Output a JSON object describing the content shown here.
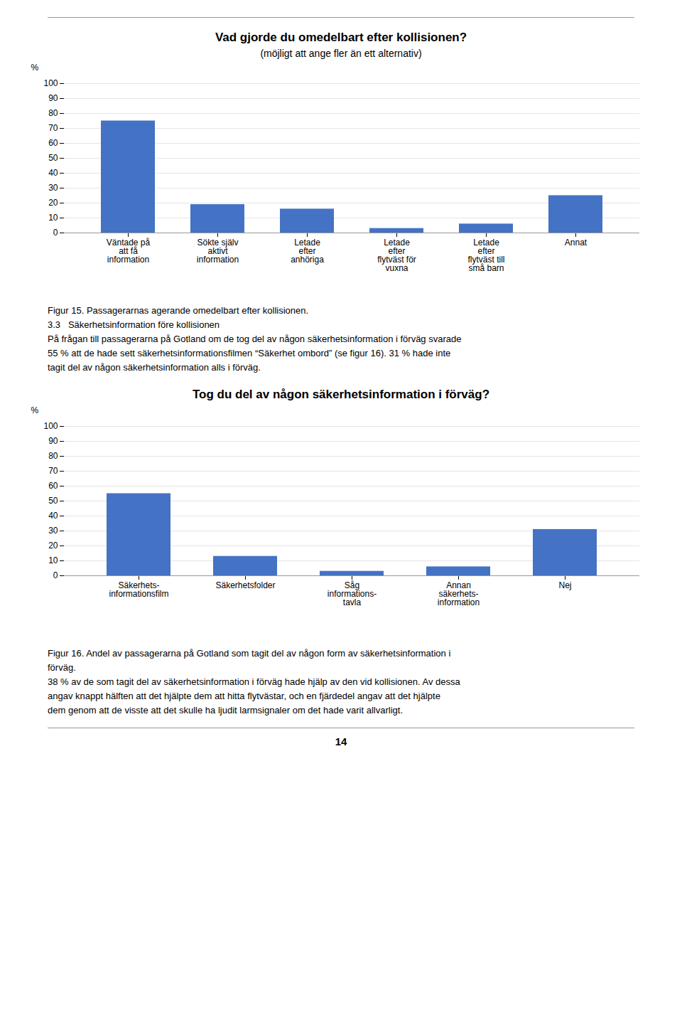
{
  "chart_data": [
    {
      "type": "bar",
      "title": "Vad gjorde du omedelbart efter kollisionen?",
      "subtitle": "(möjligt att ange fler än ett alternativ)",
      "ylabel": "%",
      "categories": [
        "Väntade på\natt få\ninformation",
        "Sökte själv\naktivt\ninformation",
        "Letade\nefter\nanhöriga",
        "Letade\nefter\nflytväst för\nvuxna",
        "Letade\nefter\nflytväst till\nsmå barn",
        "Annat"
      ],
      "values": [
        75,
        19,
        16,
        3,
        6,
        25
      ],
      "color": "#4472C4",
      "ylim": [
        0,
        100
      ],
      "yticks": [
        0,
        10,
        20,
        30,
        40,
        50,
        60,
        70,
        80,
        90,
        100
      ],
      "grid": true,
      "annotations": [
        "Figur 15. Passagerarnas agerande omedelbart efter kollisionen.",
        "3.3   Säkerhetsinformation före kollisionen",
        "På frågan till passagerarna på Gotland om de tog del av någon säkerhetsinformation i förväg svarade",
        "55 % att de hade sett säkerhetsinformationsfilmen “Säkerhet ombord” (se figur 16). 31 % hade inte",
        "tagit del av någon säkerhetsinformation alls i förväg."
      ]
    },
    {
      "type": "bar",
      "title": "Tog du del av någon säkerhetsinformation i förväg?",
      "ylabel": "%",
      "categories": [
        "Säkerhets-\ninformationsfilm",
        "Säkerhetsfolder",
        "Såg\ninformations-\ntavla",
        "Annan\nsäkerhets-\ninformation",
        "Nej"
      ],
      "values": [
        55,
        13,
        3,
        6,
        31
      ],
      "color": "#4472C4",
      "ylim": [
        0,
        100
      ],
      "yticks": [
        0,
        10,
        20,
        30,
        40,
        50,
        60,
        70,
        80,
        90,
        100
      ],
      "grid": true,
      "annotations": [
        "Figur 16. Andel av passagerarna på Gotland som tagit del av någon form av säkerhetsinformation i",
        "förväg.",
        "38 % av de som tagit del av säkerhetsinformation i förväg hade hjälp av den vid kollisionen. Av dessa",
        "angav knappt hälften att det hjälpte dem att hitta flytvästar, och en fjärdedel angav att det hjälpte",
        "dem genom att de visste att det skulle ha ljudit larmsignaler om det hade varit allvarligt."
      ]
    }
  ],
  "page_number": "14"
}
